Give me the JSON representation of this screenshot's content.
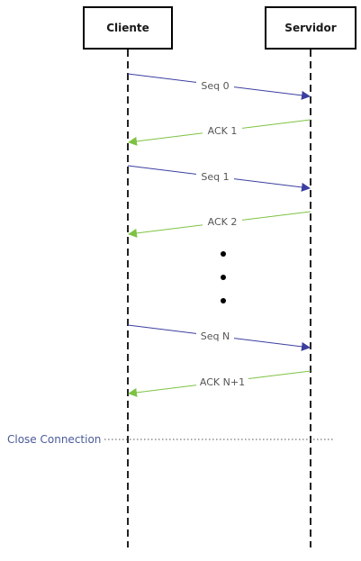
{
  "actors": {
    "client": {
      "label": "Cliente"
    },
    "server": {
      "label": "Servidor"
    }
  },
  "messages": [
    {
      "label": "Seq 0",
      "direction": "client-to-server",
      "color": "#3b3ea0"
    },
    {
      "label": "ACK 1",
      "direction": "server-to-client",
      "color": "#7dc242"
    },
    {
      "label": "Seq 1",
      "direction": "client-to-server",
      "color": "#3b3ea0"
    },
    {
      "label": "ACK 2",
      "direction": "server-to-client",
      "color": "#7dc242"
    },
    {
      "label": "Seq N",
      "direction": "client-to-server",
      "color": "#3b3ea0"
    },
    {
      "label": "ACK N+1",
      "direction": "server-to-client",
      "color": "#7dc242"
    }
  ],
  "close": {
    "label": "Close Connection",
    "color": "#4a5a9a"
  },
  "colors": {
    "seq_arrow": "#3b3ea0",
    "ack_arrow": "#7dc242",
    "message_text": "#555555",
    "lifeline": "#222222",
    "ellipsis_dot": "#000000"
  }
}
